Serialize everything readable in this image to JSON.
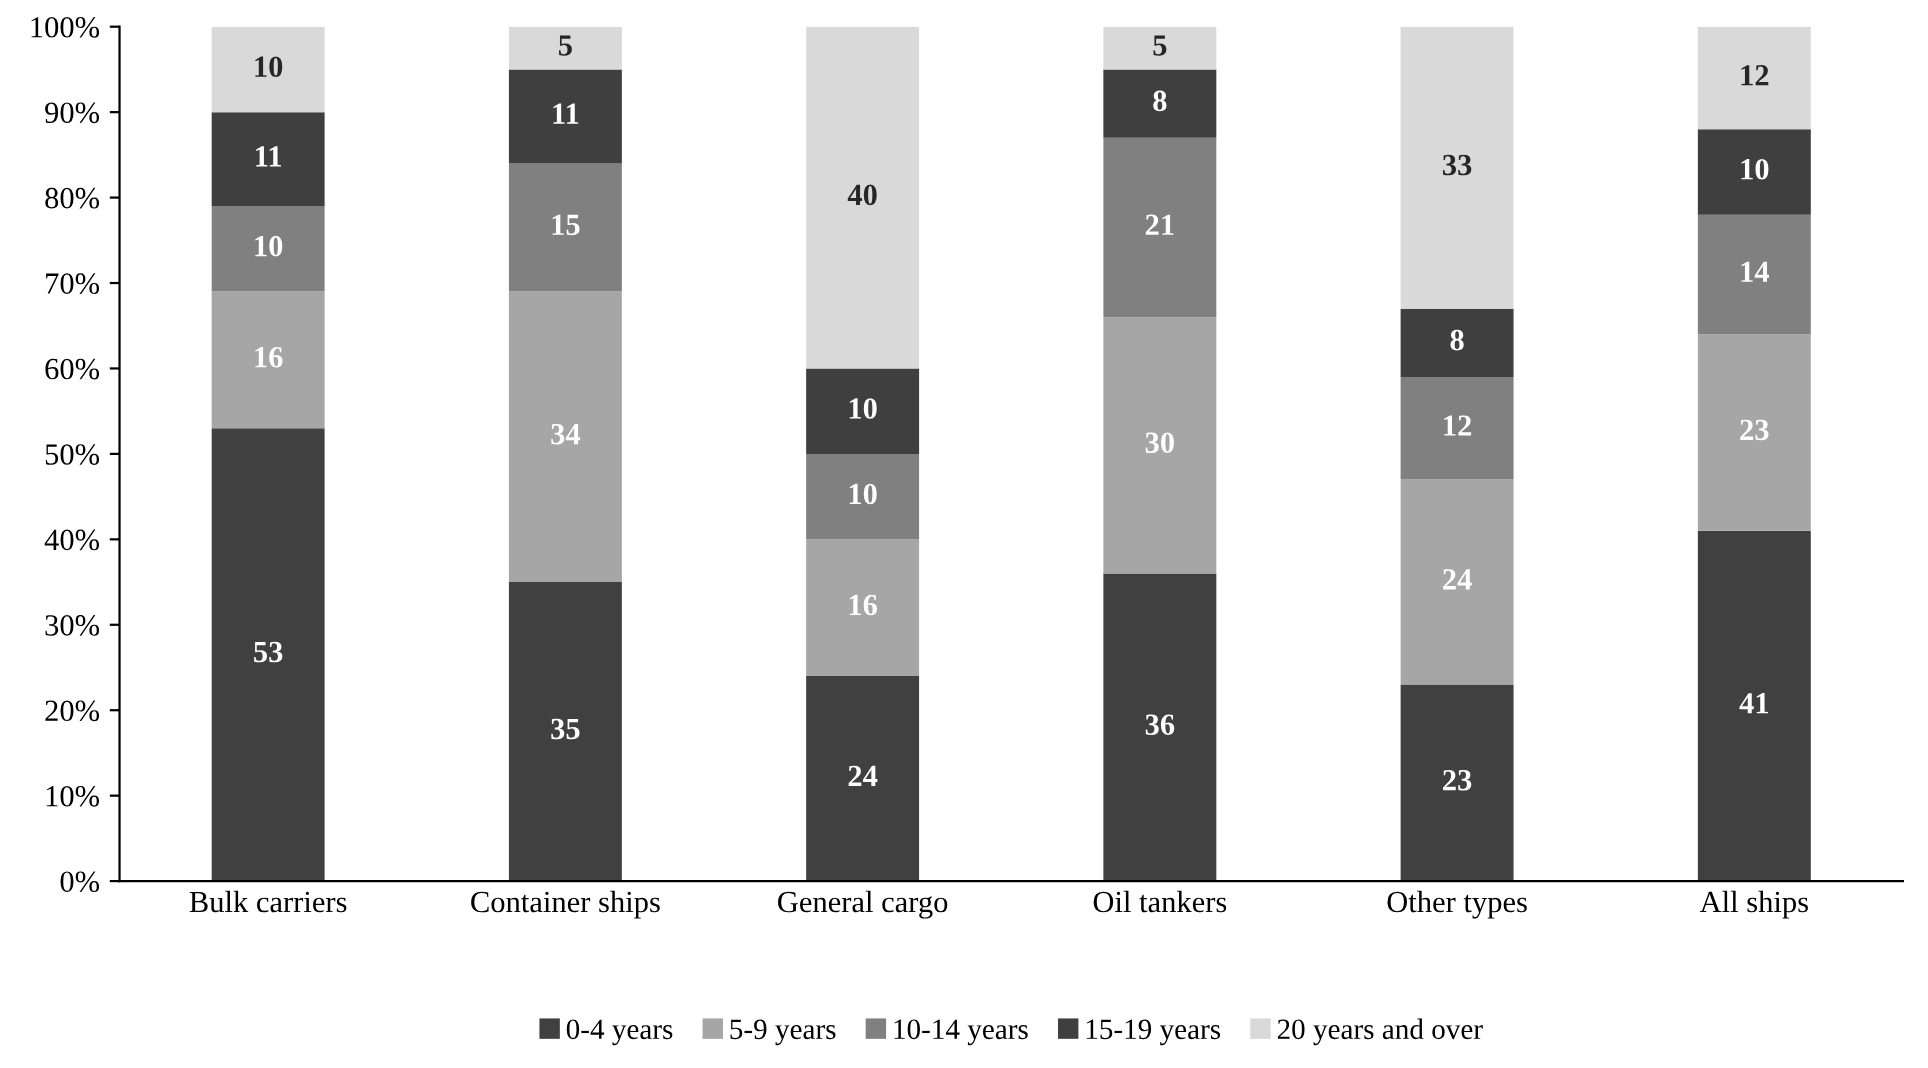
{
  "chart_data": {
    "type": "bar",
    "stacked": true,
    "categories": [
      "Bulk carriers",
      "Container ships",
      "General cargo",
      "Oil tankers",
      "Other types",
      "All ships"
    ],
    "series": [
      {
        "name": "0-4 years",
        "color": "#404040",
        "values": [
          53,
          35,
          24,
          36,
          23,
          41
        ]
      },
      {
        "name": "5-9 years",
        "color": "#a6a6a6",
        "values": [
          16,
          34,
          16,
          30,
          24,
          23
        ]
      },
      {
        "name": "10-14 years",
        "color": "#808080",
        "values": [
          10,
          15,
          10,
          21,
          12,
          14
        ]
      },
      {
        "name": "15-19 years",
        "color": "#3f3f3f",
        "values": [
          11,
          11,
          10,
          8,
          8,
          10
        ]
      },
      {
        "name": "20 years and over",
        "color": "#d9d9d9",
        "values": [
          10,
          5,
          40,
          5,
          33,
          12
        ]
      }
    ],
    "ylim": [
      0,
      100
    ],
    "yticks": [
      {
        "value": 0,
        "label": "0%"
      },
      {
        "value": 10,
        "label": "10%"
      },
      {
        "value": 20,
        "label": "20%"
      },
      {
        "value": 30,
        "label": "30%"
      },
      {
        "value": 40,
        "label": "40%"
      },
      {
        "value": 50,
        "label": "50%"
      },
      {
        "value": 60,
        "label": "60%"
      },
      {
        "value": 70,
        "label": "70%"
      },
      {
        "value": 80,
        "label": "80%"
      },
      {
        "value": 90,
        "label": "90%"
      },
      {
        "value": 100,
        "label": "100%"
      }
    ],
    "data_labels": true,
    "grid": false,
    "legend": "bottom"
  }
}
